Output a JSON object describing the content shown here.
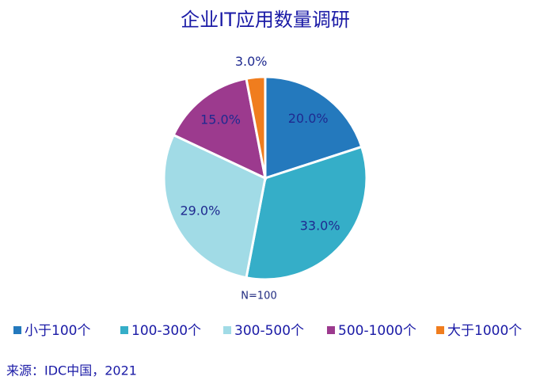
{
  "chart_data": {
    "type": "pie",
    "title": "企业IT应用数量调研",
    "categories": [
      "小于100个",
      "100-300个",
      "300-500个",
      "500-1000个",
      "大于1000个"
    ],
    "values": [
      20,
      33,
      29,
      15,
      3
    ],
    "value_labels": [
      "20.0%",
      "33.0%",
      "29.0%",
      "15.0%",
      "3.0%"
    ],
    "colors": [
      "#2479bd",
      "#35aec8",
      "#a1dbe6",
      "#9c3a8e",
      "#f07d1e"
    ],
    "annotation": "N=100",
    "source": "来源：IDC中国，2021"
  }
}
